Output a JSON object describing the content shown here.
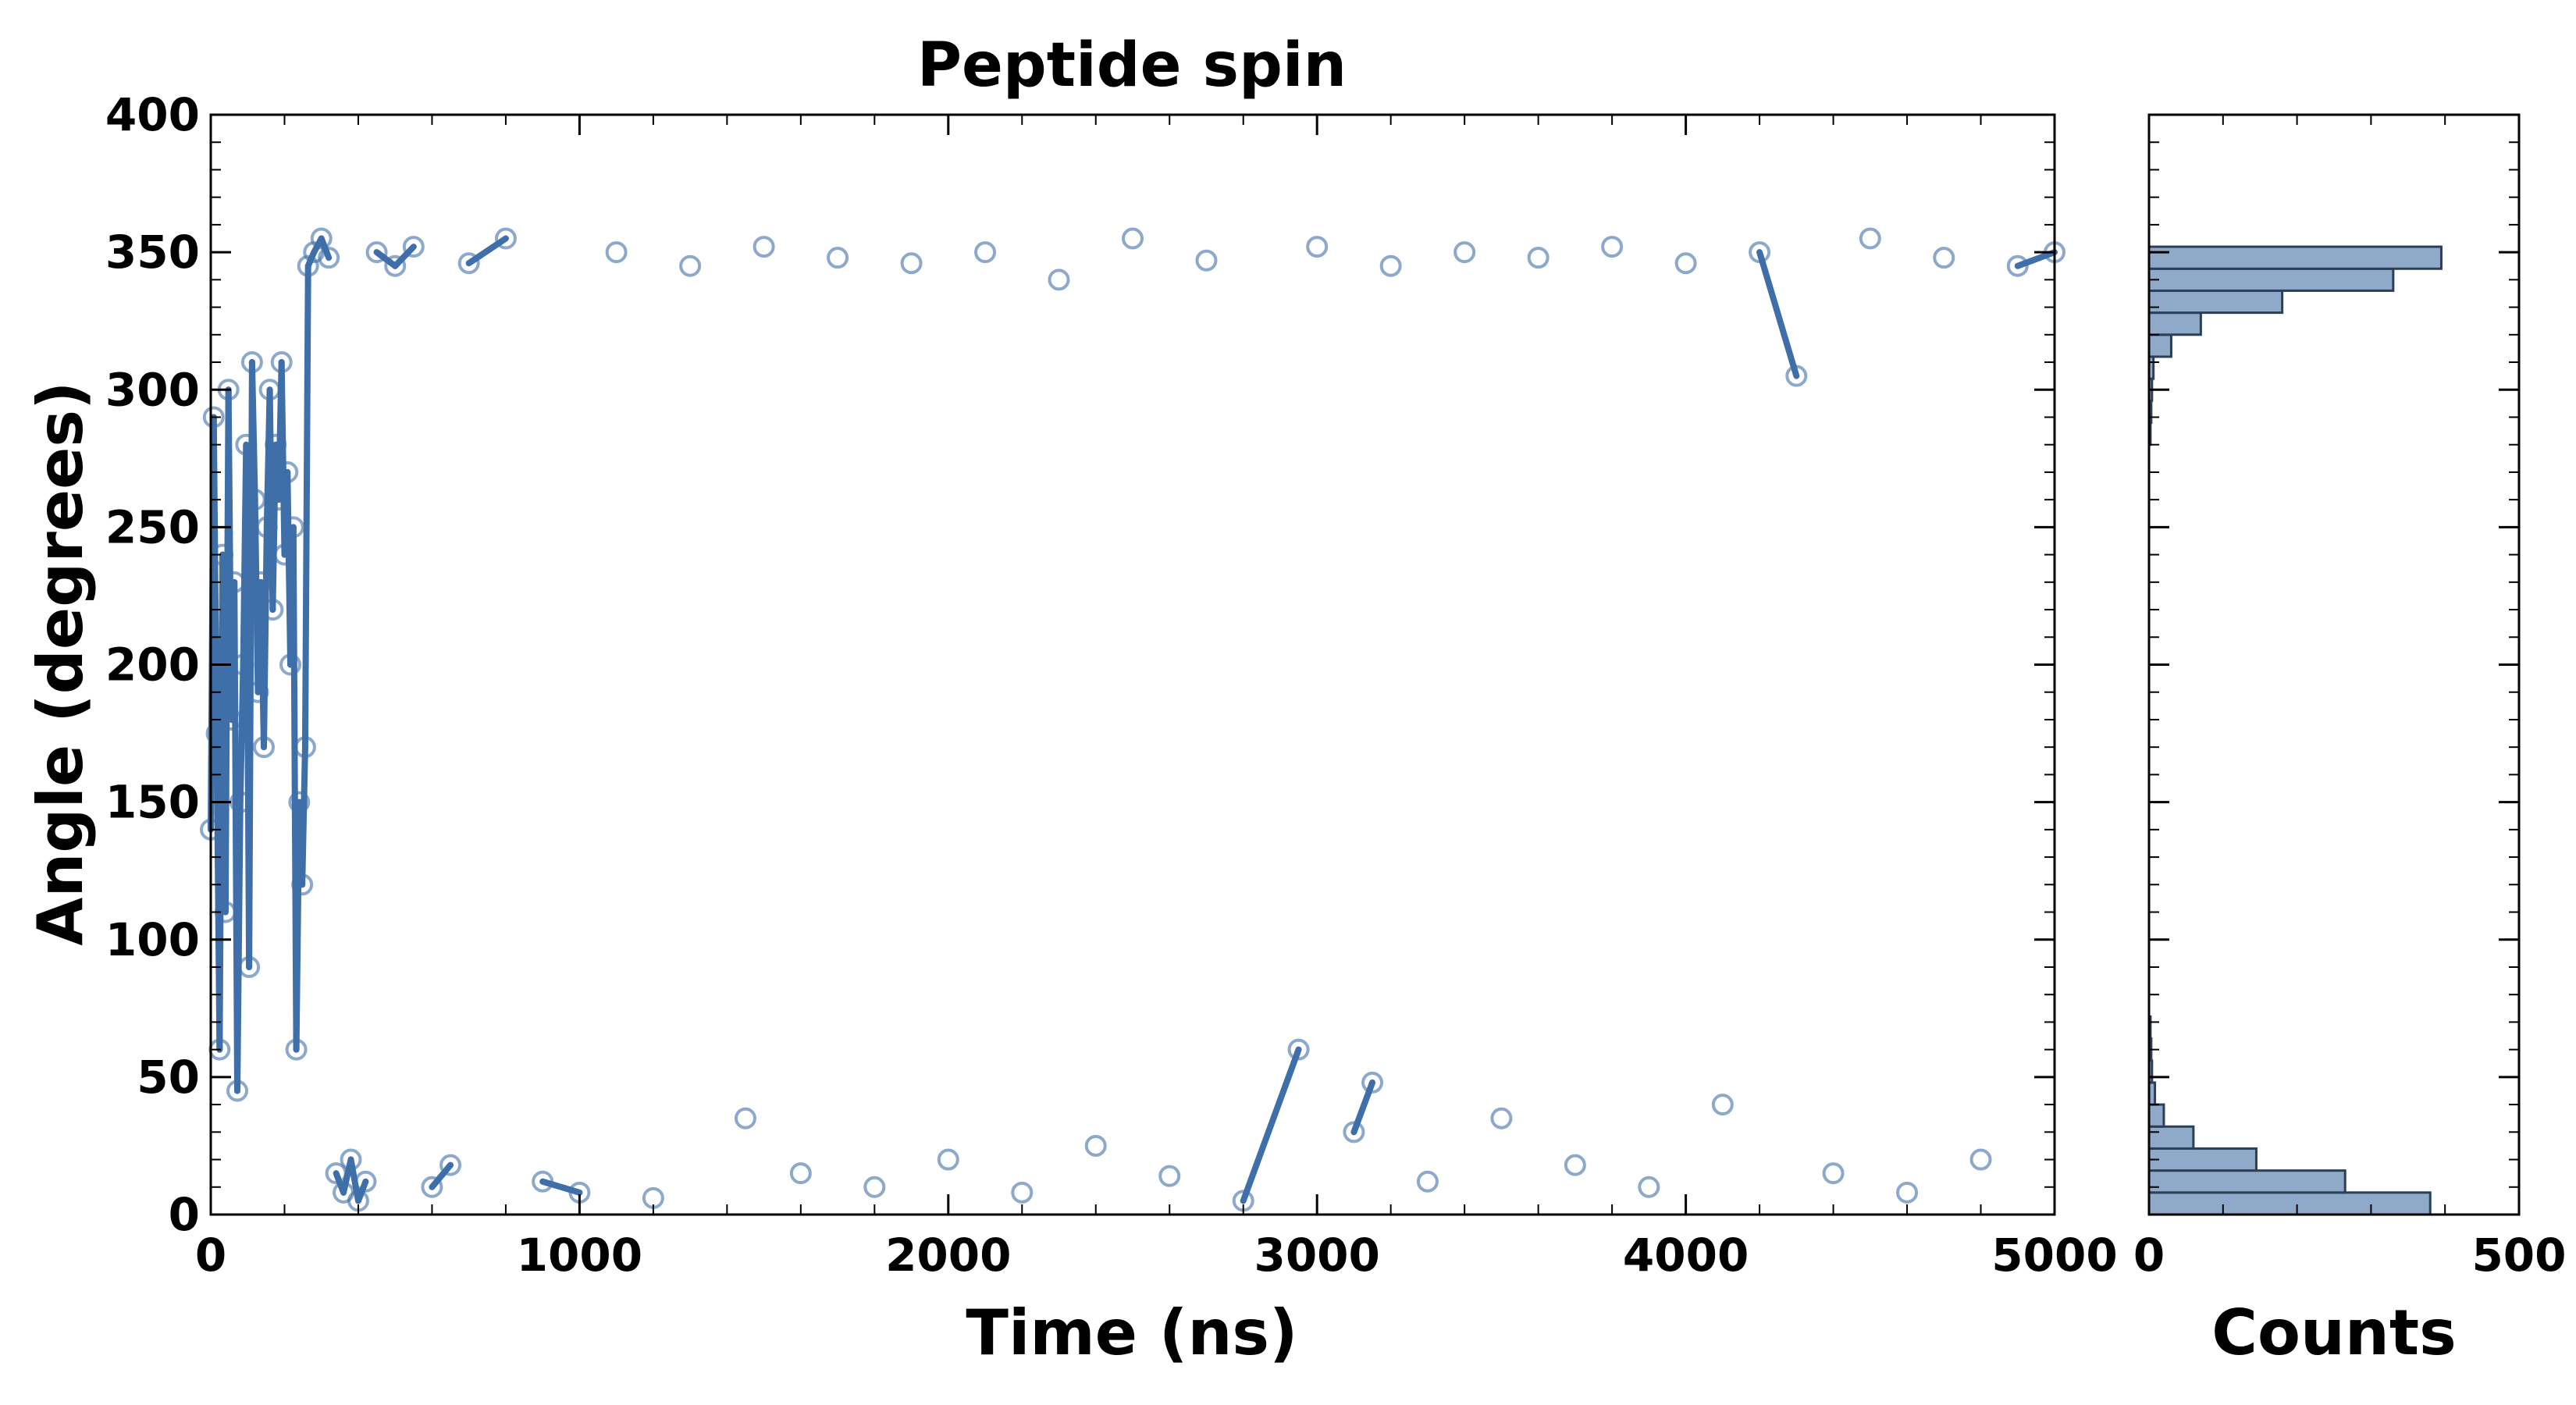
{
  "chart_data": [
    {
      "type": "scatter",
      "title": "Peptide spin",
      "xlabel": "Time (ns)",
      "ylabel": "Angle (degrees)",
      "xlim": [
        0,
        5000
      ],
      "ylim": [
        0,
        400
      ],
      "xticks": [
        "0",
        "1000",
        "2000",
        "3000",
        "4000",
        "5000"
      ],
      "yticks": [
        "0",
        "50",
        "100",
        "150",
        "200",
        "250",
        "300",
        "350",
        "400"
      ],
      "grid": false,
      "marker_color": "#3f6fa8",
      "line_color": "#3f6fa8",
      "series": [
        {
          "points": [
            [
              0,
              140
            ],
            [
              8,
              290
            ],
            [
              16,
              175
            ],
            [
              24,
              60
            ],
            [
              32,
              240
            ],
            [
              40,
              110
            ],
            [
              48,
              300
            ],
            [
              56,
              180
            ],
            [
              64,
              230
            ],
            [
              72,
              45
            ],
            [
              80,
              150
            ],
            [
              88,
              200
            ],
            [
              96,
              280
            ],
            [
              104,
              90
            ],
            [
              112,
              310
            ],
            [
              120,
              260
            ],
            [
              128,
              190
            ],
            [
              136,
              230
            ],
            [
              144,
              170
            ],
            [
              152,
              250
            ],
            [
              160,
              300
            ],
            [
              168,
              220
            ],
            [
              176,
              280
            ],
            [
              184,
              260
            ],
            [
              192,
              310
            ],
            [
              200,
              240
            ],
            [
              208,
              270
            ],
            [
              216,
              200
            ],
            [
              224,
              250
            ],
            [
              232,
              60
            ],
            [
              240,
              150
            ],
            [
              248,
              120
            ],
            [
              256,
              170
            ],
            [
              264,
              345
            ],
            [
              280,
              350
            ],
            [
              300,
              355
            ],
            [
              320,
              348
            ],
            [
              340,
              15
            ],
            [
              360,
              8
            ],
            [
              380,
              20
            ],
            [
              400,
              5
            ],
            [
              420,
              12
            ],
            [
              450,
              350
            ],
            [
              500,
              345
            ],
            [
              550,
              352
            ],
            [
              600,
              10
            ],
            [
              650,
              18
            ],
            [
              700,
              346
            ],
            [
              800,
              355
            ],
            [
              900,
              12
            ],
            [
              1000,
              8
            ],
            [
              1100,
              350
            ],
            [
              1200,
              6
            ],
            [
              1300,
              345
            ],
            [
              1450,
              35
            ],
            [
              1500,
              352
            ],
            [
              1600,
              15
            ],
            [
              1700,
              348
            ],
            [
              1800,
              10
            ],
            [
              1900,
              346
            ],
            [
              2000,
              20
            ],
            [
              2100,
              350
            ],
            [
              2200,
              8
            ],
            [
              2300,
              340
            ],
            [
              2400,
              25
            ],
            [
              2500,
              355
            ],
            [
              2600,
              14
            ],
            [
              2700,
              347
            ],
            [
              2800,
              5
            ],
            [
              2950,
              60
            ],
            [
              3000,
              352
            ],
            [
              3100,
              30
            ],
            [
              3150,
              48
            ],
            [
              3200,
              345
            ],
            [
              3300,
              12
            ],
            [
              3400,
              350
            ],
            [
              3500,
              35
            ],
            [
              3600,
              348
            ],
            [
              3700,
              18
            ],
            [
              3800,
              352
            ],
            [
              3900,
              10
            ],
            [
              4000,
              346
            ],
            [
              4100,
              40
            ],
            [
              4200,
              350
            ],
            [
              4300,
              305
            ],
            [
              4400,
              15
            ],
            [
              4500,
              355
            ],
            [
              4600,
              8
            ],
            [
              4700,
              348
            ],
            [
              4800,
              20
            ],
            [
              4900,
              345
            ],
            [
              5000,
              350
            ]
          ]
        }
      ]
    },
    {
      "type": "bar",
      "orientation": "horizontal",
      "xlabel": "Counts",
      "xlim": [
        0,
        500
      ],
      "xticks": [
        "0",
        "500"
      ],
      "bar_fill": "#8fa9c9",
      "bar_stroke": "#2b3f57",
      "bins": [
        {
          "y0": 0,
          "y1": 8,
          "count": 380
        },
        {
          "y0": 8,
          "y1": 16,
          "count": 265
        },
        {
          "y0": 16,
          "y1": 24,
          "count": 145
        },
        {
          "y0": 24,
          "y1": 32,
          "count": 60
        },
        {
          "y0": 32,
          "y1": 40,
          "count": 20
        },
        {
          "y0": 40,
          "y1": 48,
          "count": 8
        },
        {
          "y0": 48,
          "y1": 56,
          "count": 4
        },
        {
          "y0": 56,
          "y1": 64,
          "count": 3
        },
        {
          "y0": 64,
          "y1": 72,
          "count": 2
        },
        {
          "y0": 280,
          "y1": 288,
          "count": 2
        },
        {
          "y0": 288,
          "y1": 296,
          "count": 3
        },
        {
          "y0": 296,
          "y1": 304,
          "count": 4
        },
        {
          "y0": 304,
          "y1": 312,
          "count": 6
        },
        {
          "y0": 312,
          "y1": 320,
          "count": 30
        },
        {
          "y0": 320,
          "y1": 328,
          "count": 70
        },
        {
          "y0": 328,
          "y1": 336,
          "count": 180
        },
        {
          "y0": 336,
          "y1": 344,
          "count": 330
        },
        {
          "y0": 344,
          "y1": 352,
          "count": 395
        }
      ]
    }
  ]
}
